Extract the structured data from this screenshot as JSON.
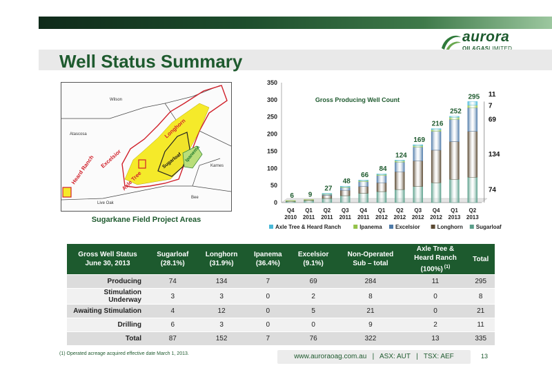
{
  "header": {
    "title": "Well Status Summary",
    "logo_word": "aurora",
    "logo_sub": "OIL&GAS",
    "logo_sub_tail": "LIMITED",
    "colors": {
      "brand_green": "#1e5a2e",
      "table_header": "#1d5a2e"
    }
  },
  "map": {
    "caption": "Sugarkane Field Project Areas",
    "labels": {
      "wilson": "Wilson",
      "atascosa": "Atascosa",
      "karnes": "Karnes",
      "live_oak": "Live Oak",
      "bee": "Bee",
      "longhorn": "Longhorn",
      "excelsior": "Excelsior",
      "heard_ranch": "Heard Ranch",
      "axle_tree": "Axle Tree",
      "sugarloaf": "Sugarloaf",
      "ipanema": "Ipanema"
    }
  },
  "chart_data": {
    "type": "bar",
    "stacked": true,
    "title": "Gross Producing Well Count",
    "categories": [
      [
        "Q4",
        "2010"
      ],
      [
        "Q1",
        "2011"
      ],
      [
        "Q2",
        "2011"
      ],
      [
        "Q3",
        "2011"
      ],
      [
        "Q4",
        "2011"
      ],
      [
        "Q1",
        "2012"
      ],
      [
        "Q2",
        "2012"
      ],
      [
        "Q3",
        "2012"
      ],
      [
        "Q4",
        "2012"
      ],
      [
        "Q1",
        "2013"
      ],
      [
        "Q2",
        "2013"
      ]
    ],
    "ylim": [
      0,
      350
    ],
    "yticks": [
      0,
      50,
      100,
      150,
      200,
      250,
      300,
      350
    ],
    "totals": [
      6,
      9,
      27,
      48,
      66,
      84,
      124,
      169,
      216,
      252,
      295
    ],
    "series": [
      {
        "name": "Sugarloaf",
        "color": "#5a9e8a",
        "values": [
          4,
          6,
          12,
          20,
          27,
          32,
          38,
          47,
          58,
          68,
          74
        ]
      },
      {
        "name": "Longhorn",
        "color": "#5b4a33",
        "values": [
          1,
          2,
          9,
          16,
          20,
          26,
          52,
          75,
          95,
          110,
          134
        ]
      },
      {
        "name": "Excelsior",
        "color": "#4e7aa8",
        "values": [
          0,
          0,
          3,
          8,
          14,
          21,
          28,
          40,
          55,
          65,
          69
        ]
      },
      {
        "name": "Ipanema",
        "color": "#94c24a",
        "values": [
          1,
          1,
          2,
          2,
          3,
          3,
          4,
          4,
          5,
          6,
          7
        ]
      },
      {
        "name": "Axle Tree & Heard Ranch",
        "color": "#48b8d8",
        "values": [
          0,
          0,
          1,
          2,
          2,
          2,
          2,
          3,
          3,
          3,
          11
        ]
      }
    ],
    "legend_order": [
      "Axle Tree & Heard Ranch",
      "Ipanema",
      "Excelsior",
      "Longhorn",
      "Sugarloaf"
    ],
    "legend": "bottom",
    "right_labels": [
      "11",
      "7",
      "69",
      "134",
      "74"
    ],
    "grid": false
  },
  "table": {
    "headers": [
      [
        "Gross Well Status",
        "June 30, 2013"
      ],
      [
        "Sugarloaf",
        "(28.1%)"
      ],
      [
        "Longhorn",
        "(31.9%)"
      ],
      [
        "Ipanema",
        "(36.4%)"
      ],
      [
        "Excelsior",
        "(9.1%)"
      ],
      [
        "Non-Operated",
        "Sub – total"
      ],
      [
        "Axle Tree &",
        "Heard Ranch",
        "(100%)"
      ],
      [
        "Total"
      ]
    ],
    "header_note": "(1)",
    "rows": [
      [
        "Producing",
        "74",
        "134",
        "7",
        "69",
        "284",
        "11",
        "295"
      ],
      [
        "Stimulation Underway",
        "3",
        "3",
        "0",
        "2",
        "8",
        "0",
        "8"
      ],
      [
        "Awaiting Stimulation",
        "4",
        "12",
        "0",
        "5",
        "21",
        "0",
        "21"
      ],
      [
        "Drilling",
        "6",
        "3",
        "0",
        "0",
        "9",
        "2",
        "11"
      ],
      [
        "Total",
        "87",
        "152",
        "7",
        "76",
        "322",
        "13",
        "335"
      ]
    ]
  },
  "footer": {
    "footnote": "(1) Operated acreage acquired effective date March 1, 2013.",
    "links": "www.auroraoag.com.au   |   ASX: AUT   |   TSX: AEF",
    "page": "13"
  }
}
